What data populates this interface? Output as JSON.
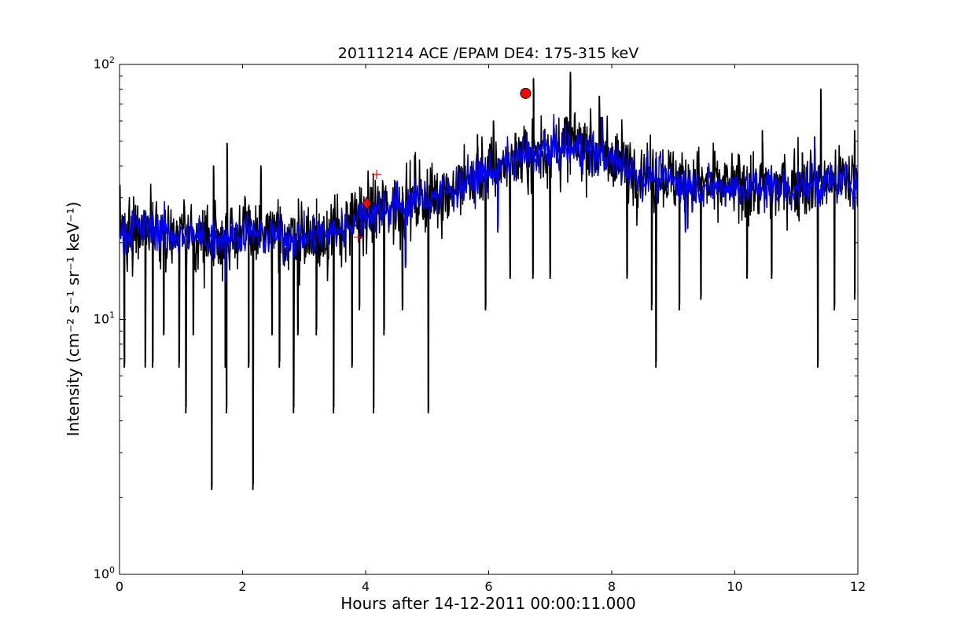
{
  "chart_data": {
    "type": "line",
    "title": "20111214 ACE /EPAM DE4: 175-315 keV",
    "xlabel": "Hours after 14-12-2011 00:00:11.000",
    "ylabel": "Intensity (cm⁻² s⁻¹ sr⁻¹ keV⁻¹)",
    "xlim": [
      0,
      12
    ],
    "ylim": [
      1,
      100
    ],
    "yscale": "log",
    "grid": false,
    "x_ticks": [
      "0",
      "2",
      "4",
      "6",
      "8",
      "10",
      "12"
    ],
    "y_ticks": [
      {
        "value": 1,
        "base": "10",
        "exp": "0"
      },
      {
        "value": 10,
        "base": "10",
        "exp": "1"
      },
      {
        "value": 100,
        "base": "10",
        "exp": "2"
      }
    ],
    "series": [
      {
        "color": "#000000",
        "anchors": [
          [
            0.0,
            22
          ],
          [
            0.5,
            24
          ],
          [
            1.0,
            21
          ],
          [
            1.5,
            21
          ],
          [
            2.0,
            22
          ],
          [
            2.5,
            21
          ],
          [
            3.0,
            21
          ],
          [
            3.5,
            22
          ],
          [
            4.0,
            26
          ],
          [
            4.5,
            28
          ],
          [
            5.0,
            30
          ],
          [
            5.5,
            33
          ],
          [
            6.0,
            38
          ],
          [
            6.5,
            43
          ],
          [
            7.0,
            47
          ],
          [
            7.5,
            49
          ],
          [
            8.0,
            43
          ],
          [
            8.5,
            38
          ],
          [
            9.0,
            36
          ],
          [
            9.5,
            34
          ],
          [
            10.0,
            33
          ],
          [
            10.5,
            33
          ],
          [
            11.0,
            34
          ],
          [
            11.5,
            35
          ],
          [
            12.0,
            36
          ]
        ],
        "spikes_up": [
          [
            1.53,
            40
          ],
          [
            1.75,
            49
          ],
          [
            2.3,
            40
          ],
          [
            4.8,
            44
          ],
          [
            5.82,
            53
          ],
          [
            6.08,
            60
          ],
          [
            6.73,
            88
          ],
          [
            7.33,
            93
          ],
          [
            7.8,
            75
          ],
          [
            10.45,
            55
          ],
          [
            11.1,
            45
          ],
          [
            11.4,
            80
          ],
          [
            11.95,
            55
          ]
        ],
        "spikes_down": [
          [
            0.08,
            6.5
          ],
          [
            0.42,
            6.5
          ],
          [
            0.54,
            6.5
          ],
          [
            0.72,
            8.7
          ],
          [
            0.97,
            6.5
          ],
          [
            1.08,
            4.3
          ],
          [
            1.2,
            8.7
          ],
          [
            1.5,
            2.15
          ],
          [
            1.72,
            6.5
          ],
          [
            1.74,
            4.3
          ],
          [
            2.1,
            6.5
          ],
          [
            2.17,
            2.15
          ],
          [
            2.48,
            8.7
          ],
          [
            2.6,
            6.5
          ],
          [
            2.83,
            4.3
          ],
          [
            2.9,
            8.7
          ],
          [
            3.2,
            8.7
          ],
          [
            3.48,
            4.3
          ],
          [
            3.78,
            6.5
          ],
          [
            3.9,
            10.9
          ],
          [
            4.13,
            4.3
          ],
          [
            4.3,
            8.7
          ],
          [
            4.6,
            10.9
          ],
          [
            5.02,
            4.3
          ],
          [
            5.95,
            10.9
          ],
          [
            6.35,
            14.5
          ],
          [
            6.72,
            14.5
          ],
          [
            7.0,
            14.5
          ],
          [
            8.25,
            14.5
          ],
          [
            8.65,
            10.9
          ],
          [
            8.72,
            6.5
          ],
          [
            9.1,
            10.9
          ],
          [
            9.45,
            12
          ],
          [
            10.2,
            14.5
          ],
          [
            10.6,
            14.5
          ],
          [
            11.35,
            6.5
          ],
          [
            11.62,
            10.9
          ],
          [
            11.95,
            12
          ]
        ]
      },
      {
        "color": "#0000ff",
        "anchors": [
          [
            0.0,
            22
          ],
          [
            0.5,
            23
          ],
          [
            1.0,
            21
          ],
          [
            1.5,
            21
          ],
          [
            2.0,
            22
          ],
          [
            2.5,
            21
          ],
          [
            3.0,
            21
          ],
          [
            3.5,
            22
          ],
          [
            4.0,
            26
          ],
          [
            4.5,
            28
          ],
          [
            5.0,
            30
          ],
          [
            5.5,
            33
          ],
          [
            6.0,
            38
          ],
          [
            6.5,
            43
          ],
          [
            7.0,
            46
          ],
          [
            7.5,
            47
          ],
          [
            8.0,
            42
          ],
          [
            8.5,
            37
          ],
          [
            9.0,
            35
          ],
          [
            9.5,
            33
          ],
          [
            10.0,
            33
          ],
          [
            10.5,
            33
          ],
          [
            11.0,
            33
          ],
          [
            11.5,
            34
          ],
          [
            12.0,
            35
          ]
        ],
        "spikes_up": [
          [
            6.9,
            55
          ],
          [
            7.85,
            62
          ],
          [
            11.3,
            52
          ]
        ],
        "spikes_down": [
          [
            1.72,
            14
          ],
          [
            4.65,
            16
          ],
          [
            6.15,
            22
          ],
          [
            9.2,
            22
          ]
        ]
      }
    ],
    "markers": [
      {
        "shape": "circle",
        "color": "#ff0000",
        "x": 6.6,
        "y": 77
      },
      {
        "shape": "diamond",
        "color": "#ff0000",
        "x": 4.02,
        "y": 28.5
      },
      {
        "shape": "plus",
        "color": "#ff0000",
        "x": 3.88,
        "y": 21
      },
      {
        "shape": "plus",
        "color": "#ff0000",
        "x": 4.18,
        "y": 37
      }
    ]
  }
}
